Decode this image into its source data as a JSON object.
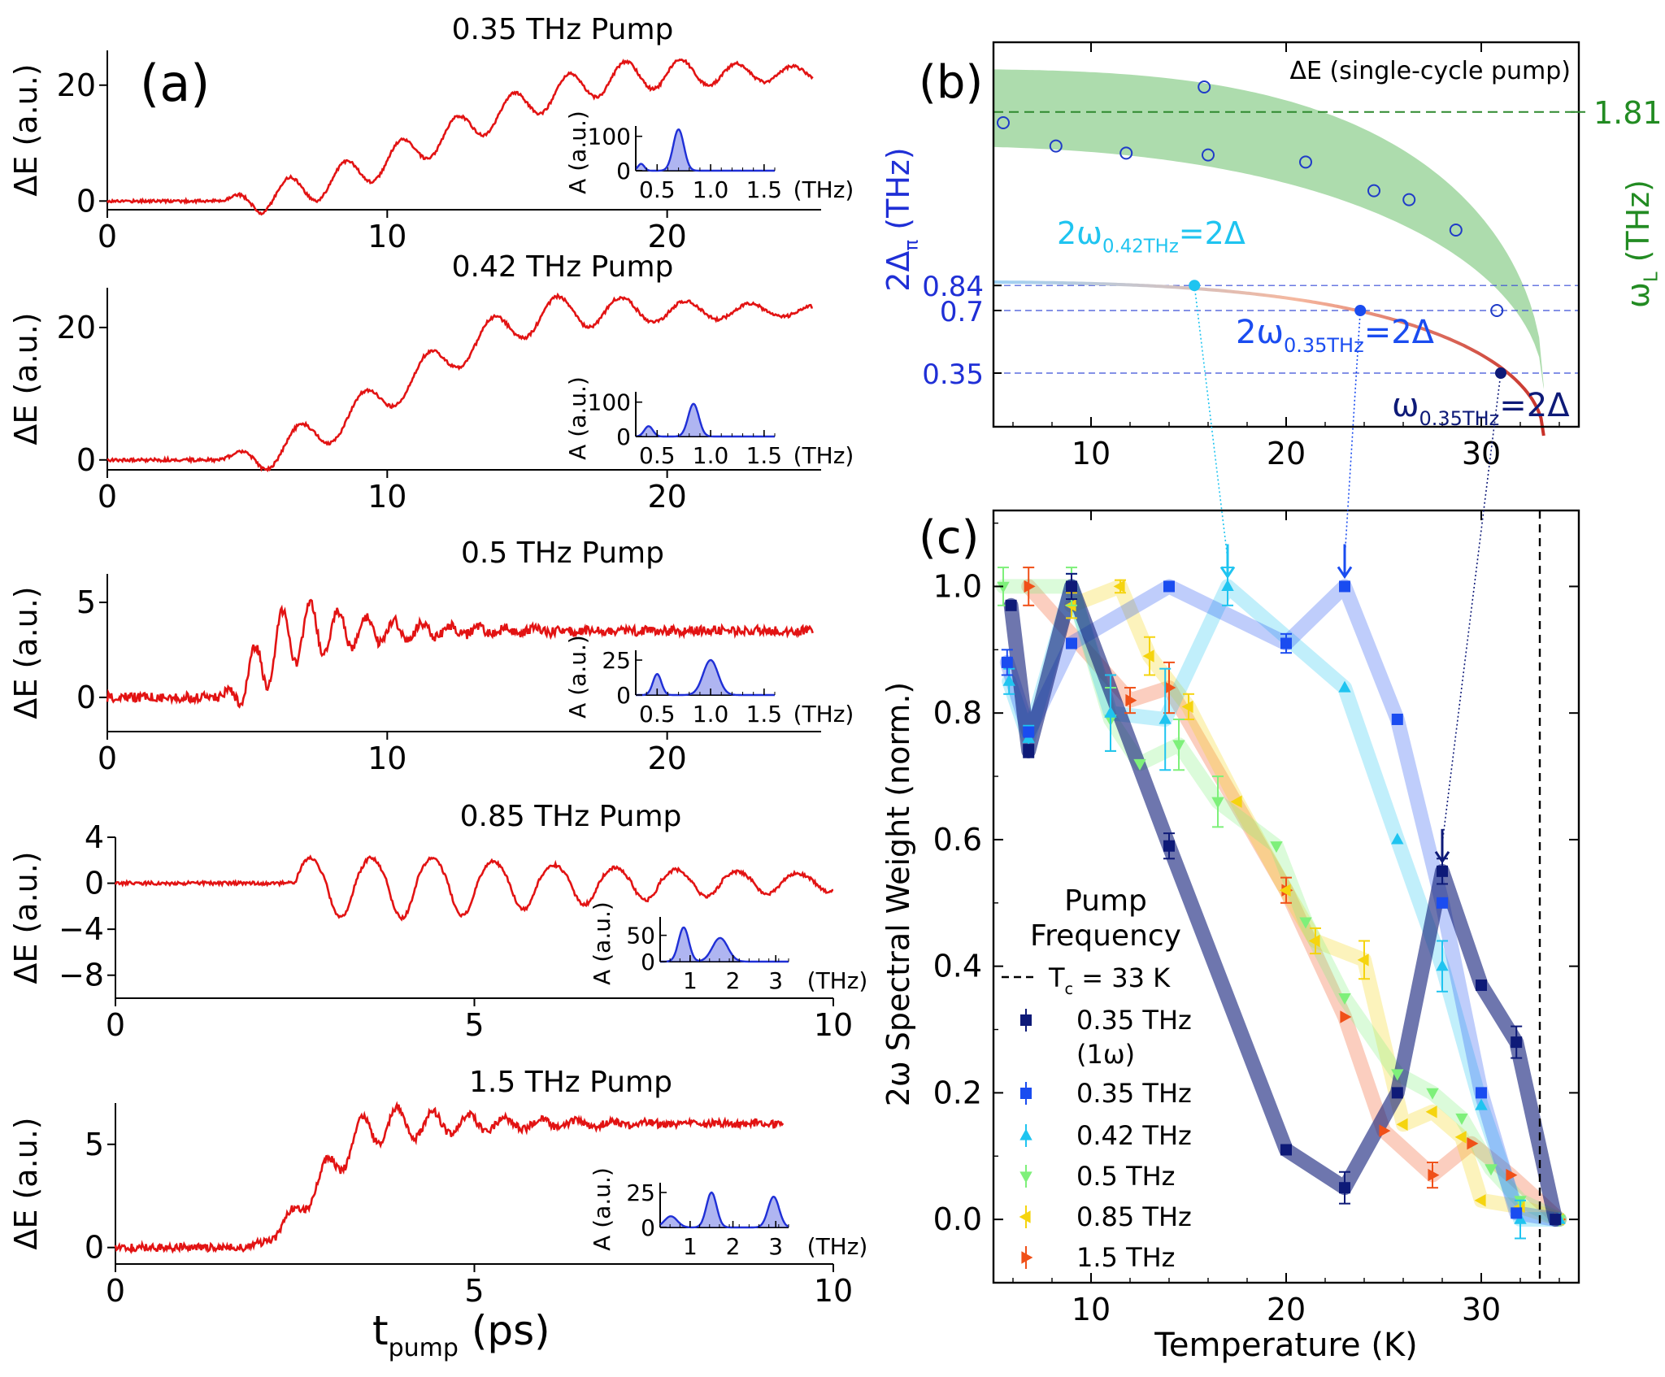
{
  "figure": {
    "label_a": "(a)",
    "label_b": "(b)",
    "label_c": "(c)",
    "a_xlabel_main": "t",
    "a_xlabel_sub": "pump",
    "a_xlabel_unit": "(ps)"
  },
  "chart_data": [
    {
      "type": "line",
      "panel": "a1",
      "title": "0.35 THz Pump",
      "ylabel": "ΔE (a.u.)",
      "xlim": [
        0,
        25.5
      ],
      "ylim": [
        -1.5,
        26
      ],
      "xticks": [
        "0",
        "10",
        "20"
      ],
      "yticks": [
        "0",
        "20"
      ],
      "trace": {
        "end": 25.2,
        "rise_start": 4,
        "rise_end": 20,
        "final": 22,
        "osc_amp": 2.6,
        "osc_period": 2.0,
        "noise": 0.25
      },
      "inset": {
        "ylabel": "A (a.u.)",
        "xlabel": "(THz)",
        "xticks": [
          "0.5",
          "1.0",
          "1.5"
        ],
        "yticks": [
          "0",
          "100"
        ],
        "xlim": [
          0.3,
          1.6
        ],
        "ymax": 130,
        "peaks": [
          [
            0.35,
            20,
            0.03
          ],
          [
            0.7,
            120,
            0.05
          ]
        ]
      }
    },
    {
      "type": "line",
      "panel": "a2",
      "title": "0.42 THz Pump",
      "ylabel": "ΔE (a.u.)",
      "xlim": [
        0,
        25.5
      ],
      "ylim": [
        -1.5,
        26
      ],
      "xticks": [
        "0",
        "10",
        "20"
      ],
      "yticks": [
        "0",
        "20"
      ],
      "trace": {
        "end": 25.2,
        "rise_start": 4,
        "rise_end": 17,
        "final": 22.5,
        "osc_amp": 2.5,
        "osc_period": 2.3,
        "noise": 0.25
      },
      "inset": {
        "ylabel": "A (a.u.)",
        "xlabel": "(THz)",
        "xticks": [
          "0.5",
          "1.0",
          "1.5"
        ],
        "yticks": [
          "0",
          "100"
        ],
        "xlim": [
          0.3,
          1.6
        ],
        "ymax": 130,
        "peaks": [
          [
            0.42,
            30,
            0.04
          ],
          [
            0.84,
            95,
            0.05
          ]
        ]
      }
    },
    {
      "type": "line",
      "panel": "a3",
      "title": "0.5 THz Pump",
      "ylabel": "ΔE (a.u.)",
      "xlim": [
        0,
        25.5
      ],
      "ylim": [
        -1.8,
        6.5
      ],
      "xticks": [
        "0",
        "10",
        "20"
      ],
      "yticks": [
        "0",
        "5"
      ],
      "trace": {
        "end": 25.2,
        "rise_start": 4,
        "rise_end": 7,
        "final": 3.5,
        "osc_amp": 1.6,
        "osc_period": 1.0,
        "noise": 0.25
      },
      "inset": {
        "ylabel": "A (a.u.)",
        "xlabel": "(THz)",
        "xticks": [
          "0.5",
          "1.0",
          "1.5"
        ],
        "yticks": [
          "0",
          "25"
        ],
        "xlim": [
          0.3,
          1.6
        ],
        "ymax": 32,
        "peaks": [
          [
            0.5,
            15,
            0.04
          ],
          [
            1.0,
            25,
            0.07
          ]
        ]
      }
    },
    {
      "type": "line",
      "panel": "a4",
      "title": "0.85 THz Pump",
      "ylabel": "ΔE (a.u.)",
      "xlim": [
        0,
        10
      ],
      "ylim": [
        -10,
        4
      ],
      "xticks": [
        "0",
        "5",
        "10"
      ],
      "yticks": [
        "4",
        "0",
        "−4",
        "−8"
      ],
      "trace": {
        "end": 10,
        "rise_start": 2.5,
        "rise_end": 2.6,
        "final": 0.2,
        "osc_amp": 3.2,
        "osc_period": 0.85,
        "noise": 0.15
      },
      "inset": {
        "ylabel": "A (a.u.)",
        "xlabel": "(THz)",
        "xticks": [
          "1",
          "2",
          "3"
        ],
        "yticks": [
          "0",
          "50"
        ],
        "xlim": [
          0.3,
          3.3
        ],
        "ymax": 85,
        "peaks": [
          [
            0.85,
            65,
            0.12
          ],
          [
            1.7,
            45,
            0.18
          ]
        ]
      }
    },
    {
      "type": "line",
      "panel": "a5",
      "title": "1.5 THz Pump",
      "ylabel": "ΔE (a.u.)",
      "xlim": [
        0,
        10
      ],
      "ylim": [
        -0.8,
        7
      ],
      "xticks": [
        "0",
        "5",
        "10"
      ],
      "yticks": [
        "0",
        "5"
      ],
      "trace": {
        "end": 9.3,
        "rise_start": 1.8,
        "rise_end": 3.8,
        "final": 6.0,
        "osc_amp": 0.9,
        "osc_period": 0.5,
        "noise": 0.18
      },
      "inset": {
        "ylabel": "A (a.u.)",
        "xlabel": "(THz)",
        "xticks": [
          "1",
          "2",
          "3"
        ],
        "yticks": [
          "0",
          "25"
        ],
        "xlim": [
          0.3,
          3.3
        ],
        "ymax": 32,
        "peaks": [
          [
            0.55,
            8,
            0.15
          ],
          [
            1.5,
            25,
            0.12
          ],
          [
            2.95,
            22,
            0.13
          ]
        ]
      }
    },
    {
      "type": "line",
      "panel": "b",
      "xlim": [
        5,
        35
      ],
      "ylim": [
        0.05,
        2.2
      ],
      "xticks": [
        "10",
        "20",
        "30"
      ],
      "ylabel_left": "2Δ",
      "ylabel_left_sub": "π",
      "ylabel_left_unit": "(THz)",
      "ylabel_right_main": "ω",
      "ylabel_right_sub": "L",
      "ylabel_right_unit": "(THz)",
      "right_tick": "1.81",
      "left_ticks": [
        "0.84",
        "0.7",
        "0.35"
      ],
      "legend": "ΔE (single-cycle pump)",
      "annotations": [
        {
          "main": "2ω",
          "sub": "0.42THz",
          "rest": "=2Δ"
        },
        {
          "main": "2ω",
          "sub": "0.35THz",
          "rest": "=2Δ"
        },
        {
          "main": "ω",
          "sub": "0.35THz",
          "rest": "=2Δ"
        }
      ],
      "markers": [
        [
          15.3,
          0.84
        ],
        [
          23.8,
          0.7
        ],
        [
          31.0,
          0.35
        ]
      ],
      "circles": [
        [
          5.5,
          1.75
        ],
        [
          8.2,
          1.62
        ],
        [
          11.8,
          1.58
        ],
        [
          15.8,
          1.95
        ],
        [
          16.0,
          1.57
        ],
        [
          21.0,
          1.53
        ],
        [
          24.5,
          1.37
        ],
        [
          26.3,
          1.32
        ],
        [
          28.7,
          1.15
        ],
        [
          30.8,
          0.7
        ]
      ],
      "gap_curve": {
        "Tc": 33.2,
        "delta0": 0.86
      },
      "band": {
        "Tc": 33.2,
        "upper0": 2.05,
        "lower0": 1.62
      }
    },
    {
      "type": "line",
      "panel": "c",
      "xlabel": "Temperature (K)",
      "ylabel": "2ω Spectral Weight (norm.)",
      "xlim": [
        5,
        35
      ],
      "ylim": [
        -0.1,
        1.12
      ],
      "xticks": [
        "10",
        "20",
        "30"
      ],
      "yticks": [
        "0.0",
        "0.2",
        "0.4",
        "0.6",
        "0.8",
        "1.0"
      ],
      "tc": 33,
      "legend_title": "Pump\nFrequency",
      "legend_tc": "T",
      "legend_tc_sub": "c",
      "legend_tc_rest": " = 33 K",
      "series": [
        {
          "name": "0.35 THz",
          "name2": "(1ω)",
          "color": "#0e1a78",
          "marker": "s",
          "x": [
            5.9,
            6.8,
            9.0,
            14.0,
            20.0,
            23.0,
            25.7,
            28.0,
            30.0,
            31.8,
            33.8
          ],
          "y": [
            0.97,
            0.74,
            1.0,
            0.59,
            0.11,
            0.05,
            0.2,
            0.55,
            0.37,
            0.28,
            0.0
          ],
          "err": [
            0.0,
            0.01,
            0.02,
            0.02,
            0.0,
            0.025,
            0.0,
            0.02,
            0.0,
            0.025,
            0.0
          ]
        },
        {
          "name": "0.35 THz",
          "color": "#1a4cf0",
          "marker": "s",
          "x": [
            5.7,
            6.8,
            9.0,
            14.0,
            20.0,
            23.0,
            25.7,
            28.0,
            30.0,
            31.8,
            33.8
          ],
          "y": [
            0.88,
            0.77,
            0.91,
            1.0,
            0.91,
            1.0,
            0.79,
            0.5,
            0.2,
            0.01,
            0.0
          ],
          "err": [
            0.02,
            0.0,
            0.0,
            0.0,
            0.015,
            0.0,
            0.0,
            0.0,
            0.0,
            0.0,
            0.0
          ]
        },
        {
          "name": "0.42 THz",
          "color": "#1fc4f0",
          "marker": "^",
          "x": [
            5.8,
            6.8,
            9.0,
            11.0,
            13.8,
            17.0,
            23.0,
            25.7,
            28.0,
            30.0,
            32.0,
            34.0
          ],
          "y": [
            0.85,
            0.76,
            1.0,
            0.8,
            0.79,
            1.0,
            0.84,
            0.6,
            0.4,
            0.18,
            0.0,
            0.0
          ],
          "err": [
            0.02,
            0.02,
            0.02,
            0.06,
            0.08,
            0.03,
            0.0,
            0.0,
            0.04,
            0.0,
            0.03,
            0.0
          ]
        },
        {
          "name": "0.5 THz",
          "color": "#7ef07a",
          "marker": "v",
          "x": [
            5.5,
            9.0,
            11.0,
            12.5,
            14.5,
            16.5,
            19.5,
            21.0,
            23.0,
            25.7,
            27.5,
            29.0,
            30.5,
            32.0,
            34.0
          ],
          "y": [
            1.0,
            1.0,
            0.79,
            0.72,
            0.75,
            0.66,
            0.59,
            0.47,
            0.35,
            0.23,
            0.2,
            0.16,
            0.08,
            0.03,
            0.0
          ],
          "err": [
            0.03,
            0.03,
            0.05,
            0.0,
            0.04,
            0.04,
            0.0,
            0.0,
            0.0,
            0.0,
            0.0,
            0.0,
            0.0,
            0.0,
            0.0
          ]
        },
        {
          "name": "0.85 THz",
          "color": "#f5d40f",
          "marker": "<",
          "x": [
            9.0,
            11.5,
            13.0,
            15.0,
            17.5,
            20.0,
            21.5,
            24.0,
            26.0,
            27.5,
            29.0,
            30.0,
            32.0,
            34.0
          ],
          "y": [
            0.97,
            1.0,
            0.89,
            0.81,
            0.66,
            0.52,
            0.44,
            0.41,
            0.15,
            0.17,
            0.13,
            0.03,
            0.02,
            0.0
          ],
          "err": [
            0.02,
            0.01,
            0.03,
            0.02,
            0.0,
            0.0,
            0.02,
            0.03,
            0.0,
            0.0,
            0.0,
            0.0,
            0.0,
            0.0
          ]
        },
        {
          "name": "1.5 THz",
          "color": "#f05018",
          "marker": ">",
          "x": [
            6.8,
            12.0,
            14.0,
            20.0,
            23.0,
            25.0,
            27.5,
            29.5,
            31.5,
            34.0
          ],
          "y": [
            1.0,
            0.82,
            0.84,
            0.52,
            0.32,
            0.14,
            0.07,
            0.12,
            0.07,
            0.0
          ],
          "err": [
            0.03,
            0.02,
            0.04,
            0.02,
            0.0,
            0.0,
            0.02,
            0.0,
            0.0,
            0.0
          ]
        }
      ]
    }
  ]
}
